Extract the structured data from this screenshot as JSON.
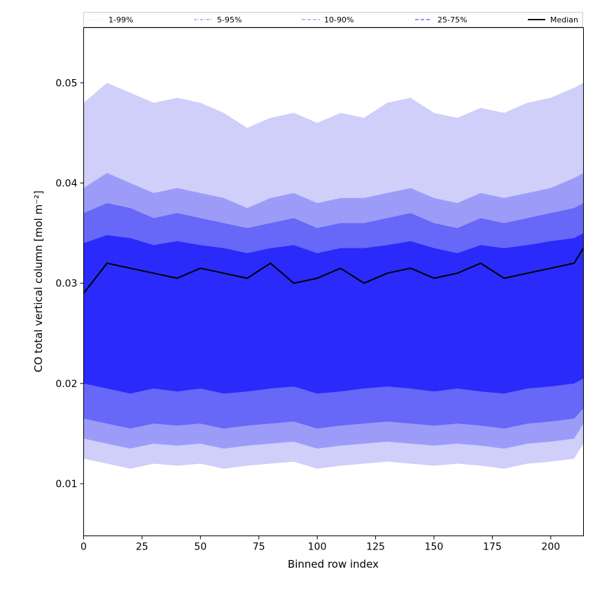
{
  "chart_data": {
    "type": "area",
    "xlabel": "Binned row index",
    "ylabel": "CO total vertical column [mol m⁻²]",
    "xlim": [
      0,
      214
    ],
    "ylim": [
      0.0048,
      0.0555
    ],
    "xticks": [
      0,
      25,
      50,
      75,
      100,
      125,
      150,
      175,
      200
    ],
    "yticks": [
      0.01,
      0.02,
      0.03,
      0.04,
      0.05
    ],
    "ytick_labels": [
      "0.01",
      "0.02",
      "0.03",
      "0.04",
      "0.05"
    ],
    "grid": false,
    "legend_position": "top",
    "x": [
      0,
      10,
      20,
      30,
      40,
      50,
      60,
      70,
      80,
      90,
      100,
      110,
      120,
      130,
      140,
      150,
      160,
      170,
      180,
      190,
      200,
      210,
      214
    ],
    "bands": [
      {
        "name": "1-99%",
        "color": "#cfcffa",
        "lower": [
          0.0125,
          0.012,
          0.0115,
          0.012,
          0.0118,
          0.012,
          0.0115,
          0.0118,
          0.012,
          0.0122,
          0.0115,
          0.0118,
          0.012,
          0.0122,
          0.012,
          0.0118,
          0.012,
          0.0118,
          0.0115,
          0.012,
          0.0122,
          0.0125,
          0.014
        ],
        "upper": [
          0.048,
          0.05,
          0.049,
          0.048,
          0.0485,
          0.048,
          0.047,
          0.0455,
          0.0465,
          0.047,
          0.046,
          0.047,
          0.0465,
          0.048,
          0.0485,
          0.047,
          0.0465,
          0.0475,
          0.047,
          0.048,
          0.0485,
          0.0495,
          0.05
        ]
      },
      {
        "name": "5-95%",
        "color": "#9c9cf8",
        "lower": [
          0.0145,
          0.014,
          0.0135,
          0.014,
          0.0138,
          0.014,
          0.0135,
          0.0138,
          0.014,
          0.0142,
          0.0135,
          0.0138,
          0.014,
          0.0142,
          0.014,
          0.0138,
          0.014,
          0.0138,
          0.0135,
          0.014,
          0.0142,
          0.0145,
          0.016
        ],
        "upper": [
          0.0395,
          0.041,
          0.04,
          0.039,
          0.0395,
          0.039,
          0.0385,
          0.0375,
          0.0385,
          0.039,
          0.038,
          0.0385,
          0.0385,
          0.039,
          0.0395,
          0.0385,
          0.038,
          0.039,
          0.0385,
          0.039,
          0.0395,
          0.0405,
          0.041
        ]
      },
      {
        "name": "10-90%",
        "color": "#6767f8",
        "lower": [
          0.0165,
          0.016,
          0.0155,
          0.016,
          0.0158,
          0.016,
          0.0155,
          0.0158,
          0.016,
          0.0162,
          0.0155,
          0.0158,
          0.016,
          0.0162,
          0.016,
          0.0158,
          0.016,
          0.0158,
          0.0155,
          0.016,
          0.0162,
          0.0165,
          0.0175
        ],
        "upper": [
          0.037,
          0.038,
          0.0375,
          0.0365,
          0.037,
          0.0365,
          0.036,
          0.0355,
          0.036,
          0.0365,
          0.0355,
          0.036,
          0.036,
          0.0365,
          0.037,
          0.036,
          0.0355,
          0.0365,
          0.036,
          0.0365,
          0.037,
          0.0375,
          0.038
        ]
      },
      {
        "name": "25-75%",
        "color": "#2a2afa",
        "lower": [
          0.02,
          0.0195,
          0.019,
          0.0195,
          0.0192,
          0.0195,
          0.019,
          0.0192,
          0.0195,
          0.0197,
          0.019,
          0.0192,
          0.0195,
          0.0197,
          0.0195,
          0.0192,
          0.0195,
          0.0192,
          0.019,
          0.0195,
          0.0197,
          0.02,
          0.0205
        ],
        "upper": [
          0.034,
          0.0348,
          0.0345,
          0.0338,
          0.0342,
          0.0338,
          0.0335,
          0.033,
          0.0335,
          0.0338,
          0.033,
          0.0335,
          0.0335,
          0.0338,
          0.0342,
          0.0335,
          0.033,
          0.0338,
          0.0335,
          0.0338,
          0.0342,
          0.0345,
          0.035
        ]
      }
    ],
    "series": [
      {
        "name": "Median",
        "color": "#000000",
        "values": [
          0.029,
          0.032,
          0.0315,
          0.031,
          0.0305,
          0.0315,
          0.031,
          0.0305,
          0.032,
          0.03,
          0.0305,
          0.0315,
          0.03,
          0.031,
          0.0315,
          0.0305,
          0.031,
          0.032,
          0.0305,
          0.031,
          0.0315,
          0.032,
          0.0335
        ]
      }
    ],
    "legend": [
      {
        "label": "1-99%",
        "color": "#d0d0ff",
        "style": "dotted"
      },
      {
        "label": "5-95%",
        "color": "#6a6aff",
        "style": "dashdot"
      },
      {
        "label": "10-90%",
        "color": "#7a7aff",
        "style": "dashed"
      },
      {
        "label": "25-75%",
        "color": "#2a2afa",
        "style": "dashed"
      },
      {
        "label": "Median",
        "color": "#000000",
        "style": "solid"
      }
    ]
  }
}
